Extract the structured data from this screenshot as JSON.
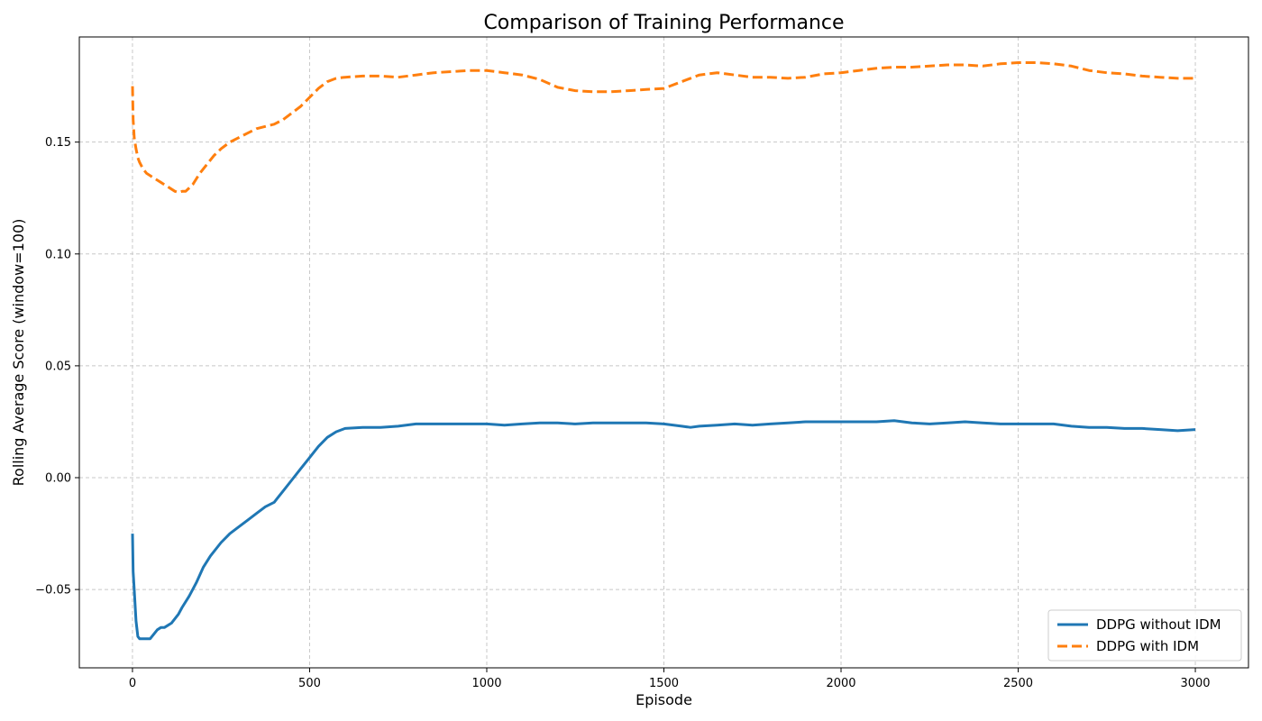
{
  "chart_data": {
    "type": "line",
    "title": "Comparison of Training Performance",
    "xlabel": "Episode",
    "ylabel": "Rolling Average Score (window=100)",
    "xlim": [
      -150,
      3150
    ],
    "ylim": [
      -0.085,
      0.197
    ],
    "xticks": [
      0,
      500,
      1000,
      1500,
      2000,
      2500,
      3000
    ],
    "xtick_labels": [
      "0",
      "500",
      "1000",
      "1500",
      "2000",
      "2500",
      "3000"
    ],
    "yticks": [
      -0.05,
      0.0,
      0.05,
      0.1,
      0.15
    ],
    "ytick_labels": [
      "−0.05",
      "0.00",
      "0.05",
      "0.10",
      "0.15"
    ],
    "grid": true,
    "legend_position": "bottom-right",
    "series": [
      {
        "name": "DDPG without IDM",
        "color": "#1f77b4",
        "style": "solid",
        "x": [
          0,
          2,
          5,
          10,
          15,
          20,
          30,
          50,
          60,
          70,
          80,
          90,
          100,
          110,
          120,
          130,
          140,
          160,
          180,
          200,
          220,
          250,
          275,
          300,
          325,
          350,
          375,
          400,
          410,
          425,
          450,
          475,
          500,
          525,
          550,
          575,
          600,
          650,
          700,
          750,
          800,
          850,
          900,
          950,
          1000,
          1050,
          1100,
          1150,
          1200,
          1250,
          1300,
          1350,
          1400,
          1450,
          1500,
          1550,
          1575,
          1600,
          1650,
          1700,
          1750,
          1800,
          1850,
          1900,
          1950,
          2000,
          2050,
          2100,
          2150,
          2200,
          2250,
          2300,
          2350,
          2400,
          2450,
          2500,
          2550,
          2600,
          2650,
          2700,
          2750,
          2800,
          2850,
          2900,
          2950,
          3000
        ],
        "y": [
          -0.025,
          -0.042,
          -0.05,
          -0.064,
          -0.071,
          -0.072,
          -0.072,
          -0.072,
          -0.07,
          -0.068,
          -0.067,
          -0.067,
          -0.066,
          -0.065,
          -0.063,
          -0.061,
          -0.058,
          -0.053,
          -0.047,
          -0.04,
          -0.035,
          -0.029,
          -0.025,
          -0.022,
          -0.019,
          -0.016,
          -0.013,
          -0.011,
          -0.009,
          -0.006,
          -0.001,
          0.004,
          0.009,
          0.014,
          0.018,
          0.0205,
          0.022,
          0.0225,
          0.0225,
          0.023,
          0.024,
          0.024,
          0.024,
          0.024,
          0.024,
          0.0235,
          0.024,
          0.0245,
          0.0245,
          0.024,
          0.0245,
          0.0245,
          0.0245,
          0.0245,
          0.024,
          0.023,
          0.0225,
          0.023,
          0.0235,
          0.024,
          0.0235,
          0.024,
          0.0245,
          0.025,
          0.025,
          0.025,
          0.025,
          0.025,
          0.0255,
          0.0245,
          0.024,
          0.0245,
          0.025,
          0.0245,
          0.024,
          0.024,
          0.024,
          0.024,
          0.023,
          0.0225,
          0.0225,
          0.022,
          0.022,
          0.0215,
          0.021,
          0.0215
        ]
      },
      {
        "name": "DDPG with IDM",
        "color": "#ff7f0e",
        "style": "dashed",
        "x": [
          0,
          1,
          2,
          5,
          10,
          15,
          20,
          30,
          40,
          50,
          60,
          70,
          80,
          90,
          100,
          110,
          120,
          130,
          140,
          150,
          170,
          190,
          210,
          230,
          250,
          275,
          300,
          325,
          350,
          375,
          400,
          425,
          450,
          475,
          500,
          525,
          550,
          575,
          600,
          650,
          700,
          750,
          800,
          850,
          900,
          950,
          1000,
          1050,
          1100,
          1150,
          1200,
          1250,
          1300,
          1350,
          1400,
          1450,
          1500,
          1550,
          1600,
          1650,
          1700,
          1750,
          1800,
          1850,
          1900,
          1950,
          2000,
          2050,
          2100,
          2150,
          2200,
          2250,
          2300,
          2350,
          2400,
          2450,
          2500,
          2550,
          2600,
          2650,
          2700,
          2750,
          2800,
          2850,
          2900,
          2950,
          3000
        ],
        "y": [
          0.175,
          0.168,
          0.16,
          0.152,
          0.147,
          0.143,
          0.141,
          0.138,
          0.136,
          0.135,
          0.134,
          0.133,
          0.132,
          0.131,
          0.13,
          0.129,
          0.128,
          0.1275,
          0.128,
          0.128,
          0.131,
          0.136,
          0.14,
          0.144,
          0.147,
          0.15,
          0.152,
          0.154,
          0.156,
          0.157,
          0.158,
          0.16,
          0.163,
          0.166,
          0.17,
          0.174,
          0.177,
          0.1785,
          0.179,
          0.1795,
          0.1795,
          0.179,
          0.18,
          0.181,
          0.1815,
          0.182,
          0.182,
          0.181,
          0.18,
          0.178,
          0.1745,
          0.173,
          0.1725,
          0.1725,
          0.173,
          0.1735,
          0.174,
          0.177,
          0.18,
          0.181,
          0.18,
          0.179,
          0.179,
          0.1785,
          0.179,
          0.1805,
          0.181,
          0.182,
          0.183,
          0.1835,
          0.1835,
          0.184,
          0.1845,
          0.1845,
          0.184,
          0.185,
          0.1855,
          0.1855,
          0.185,
          0.184,
          0.182,
          0.181,
          0.1805,
          0.1795,
          0.179,
          0.1785,
          0.1785
        ]
      }
    ]
  }
}
